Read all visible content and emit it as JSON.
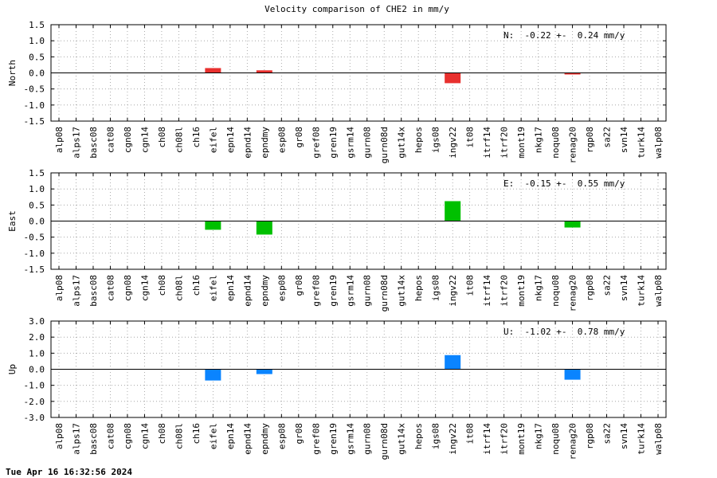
{
  "title": "Velocity comparison of CHE2 in mm/y",
  "timestamp": "Tue Apr 16 16:32:56 2024",
  "chart_data": [
    {
      "type": "bar",
      "ylabel": "North",
      "ylim": [
        -1.5,
        1.5
      ],
      "yticks": [
        "1.5",
        "1.0",
        "0.5",
        "0.0",
        "-0.5",
        "-1.0",
        "-1.5"
      ],
      "ytick_values": [
        1.5,
        1.0,
        0.5,
        0.0,
        -0.5,
        -1.0,
        -1.5
      ],
      "grid": true,
      "color": "#e8302e",
      "annotation": "N:  -0.22 +-  0.24 mm/y",
      "categories": [
        "alp08",
        "alps17",
        "basc08",
        "cat08",
        "cgn08",
        "cgn14",
        "ch08",
        "ch08l",
        "ch16",
        "eifel",
        "epn14",
        "epnd14",
        "epndmy",
        "esp08",
        "gr08",
        "gref08",
        "gren19",
        "gsrm14",
        "gurn08",
        "gurn08d",
        "gut14x",
        "hepos",
        "igs08",
        "ingv22",
        "it08",
        "itrf14",
        "itrf20",
        "mont19",
        "nkg17",
        "noqu08",
        "renag20",
        "rgp08",
        "sa22",
        "svn14",
        "turk14",
        "walp08"
      ],
      "values": [
        null,
        null,
        null,
        null,
        null,
        null,
        null,
        null,
        null,
        0.15,
        null,
        null,
        0.08,
        null,
        null,
        null,
        null,
        null,
        null,
        null,
        null,
        null,
        null,
        -0.32,
        null,
        null,
        null,
        null,
        null,
        null,
        -0.02,
        null,
        null,
        null,
        null,
        null
      ]
    },
    {
      "type": "bar",
      "ylabel": "East",
      "ylim": [
        -1.5,
        1.5
      ],
      "yticks": [
        "1.5",
        "1.0",
        "0.5",
        "0.0",
        "-0.5",
        "-1.0",
        "-1.5"
      ],
      "ytick_values": [
        1.5,
        1.0,
        0.5,
        0.0,
        -0.5,
        -1.0,
        -1.5
      ],
      "grid": true,
      "color": "#00c000",
      "annotation": "E:  -0.15 +-  0.55 mm/y",
      "categories": [
        "alp08",
        "alps17",
        "basc08",
        "cat08",
        "cgn08",
        "cgn14",
        "ch08",
        "ch08l",
        "ch16",
        "eifel",
        "epn14",
        "epnd14",
        "epndmy",
        "esp08",
        "gr08",
        "gref08",
        "gren19",
        "gsrm14",
        "gurn08",
        "gurn08d",
        "gut14x",
        "hepos",
        "igs08",
        "ingv22",
        "it08",
        "itrf14",
        "itrf20",
        "mont19",
        "nkg17",
        "noqu08",
        "renag20",
        "rgp08",
        "sa22",
        "svn14",
        "turk14",
        "walp08"
      ],
      "values": [
        null,
        null,
        null,
        null,
        null,
        null,
        null,
        null,
        null,
        -0.27,
        null,
        null,
        -0.42,
        null,
        null,
        null,
        null,
        null,
        null,
        null,
        null,
        null,
        null,
        0.62,
        null,
        null,
        null,
        null,
        null,
        null,
        -0.2,
        null,
        null,
        null,
        null,
        null
      ]
    },
    {
      "type": "bar",
      "ylabel": "Up",
      "ylim": [
        -3.0,
        3.0
      ],
      "yticks": [
        "3.0",
        "2.0",
        "1.0",
        "0.0",
        "-1.0",
        "-2.0",
        "-3.0"
      ],
      "ytick_values": [
        3.0,
        2.0,
        1.0,
        0.0,
        -1.0,
        -2.0,
        -3.0
      ],
      "grid": true,
      "color": "#0a84ff",
      "annotation": "U:  -1.02 +-  0.78 mm/y",
      "categories": [
        "alp08",
        "alps17",
        "basc08",
        "cat08",
        "cgn08",
        "cgn14",
        "ch08",
        "ch08l",
        "ch16",
        "eifel",
        "epn14",
        "epnd14",
        "epndmy",
        "esp08",
        "gr08",
        "gref08",
        "gren19",
        "gsrm14",
        "gurn08",
        "gurn08d",
        "gut14x",
        "hepos",
        "igs08",
        "ingv22",
        "it08",
        "itrf14",
        "itrf20",
        "mont19",
        "nkg17",
        "noqu08",
        "renag20",
        "rgp08",
        "sa22",
        "svn14",
        "turk14",
        "walp08"
      ],
      "values": [
        null,
        null,
        null,
        null,
        null,
        null,
        null,
        null,
        null,
        -0.7,
        null,
        null,
        -0.3,
        null,
        null,
        null,
        null,
        null,
        null,
        null,
        null,
        null,
        null,
        0.88,
        null,
        null,
        null,
        null,
        null,
        null,
        -0.65,
        null,
        null,
        null,
        null,
        null
      ]
    }
  ]
}
